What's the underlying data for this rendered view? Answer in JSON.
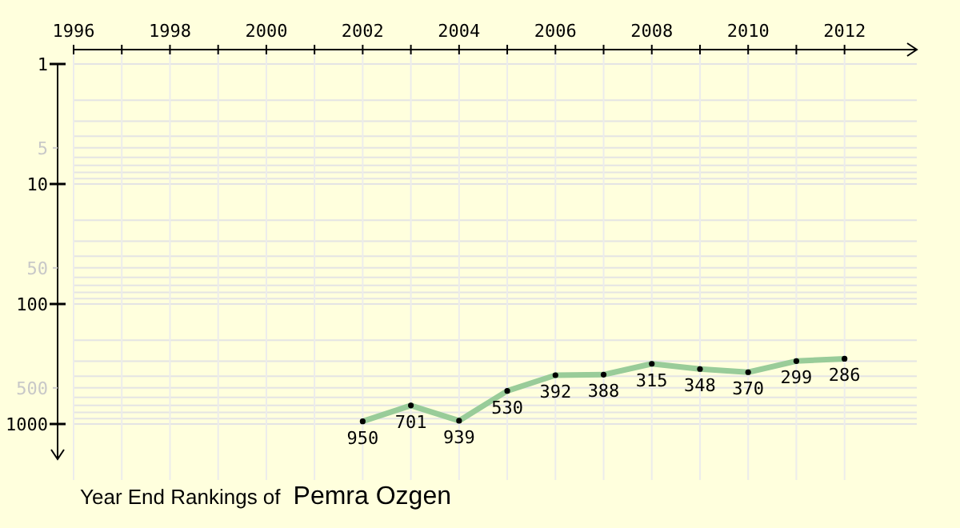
{
  "chart_data": {
    "type": "line",
    "title": "Year End Rankings of",
    "subtitle": "Pemra Ozgen",
    "x": [
      2002,
      2003,
      2004,
      2005,
      2006,
      2007,
      2008,
      2009,
      2010,
      2011,
      2012
    ],
    "series": [
      {
        "color": "#99cc99",
        "values": [
          950,
          701,
          939,
          530,
          392,
          388,
          315,
          348,
          370,
          299,
          286
        ]
      }
    ],
    "data_labels": true,
    "marker": "circle",
    "log": "y",
    "grid": true,
    "xlim": [
      1996,
      2013.5
    ],
    "ylim": [
      1000,
      1
    ],
    "xticks": [
      1996,
      {
        "value": 1997,
        "label": null
      },
      1998,
      {
        "value": 1999,
        "label": null
      },
      2000,
      {
        "value": 2001,
        "label": null
      },
      2002,
      {
        "value": 2003,
        "label": null
      },
      2004,
      {
        "value": 2005,
        "label": null
      },
      2006,
      {
        "value": 2007,
        "label": null
      },
      2008,
      {
        "value": 2009,
        "label": null
      },
      2010,
      {
        "value": 2011,
        "label": null
      },
      2012
    ],
    "yticks": [
      1,
      5,
      10,
      50,
      100,
      500,
      1000
    ]
  }
}
